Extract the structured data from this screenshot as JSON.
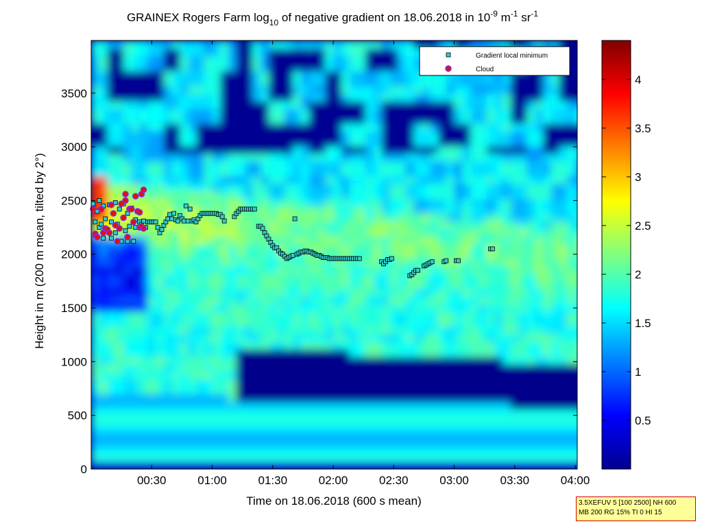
{
  "title_parts": {
    "a": "GRAINEX Rogers Farm log",
    "a_sub": "10",
    "b": " of negative gradient on 18.06.2018 in 10",
    "b_sup": "-9",
    "c": " m",
    "c_sup": "-1",
    "d": " sr",
    "d_sup": "-1"
  },
  "param_box": {
    "line1": "3.5XEFUV 5 [100 2500] NH 600",
    "line2": "MB 200 RG 15% TI 0 HI 15"
  },
  "colors": {
    "field_dark": "#00008f",
    "point_fill": "#33cccc",
    "cloud_fill": "#dd1111",
    "cloud_ring": "#8a2be2"
  },
  "chart_data": {
    "type": "heatmap",
    "title": "GRAINEX Rogers Farm log10 of negative gradient on 18.06.2018 in 10-9 m-1 sr-1",
    "xlabel": "Time on 18.06.2018 (600 s mean)",
    "ylabel": "Height in m (200 m mean, tilted by 2°)",
    "xlim_minutes": [
      0,
      241
    ],
    "ylim": [
      0,
      3990
    ],
    "x_ticks": [
      {
        "minutes": 30,
        "label": "00:30"
      },
      {
        "minutes": 60,
        "label": "01:00"
      },
      {
        "minutes": 90,
        "label": "01:30"
      },
      {
        "minutes": 120,
        "label": "02:00"
      },
      {
        "minutes": 150,
        "label": "02:30"
      },
      {
        "minutes": 180,
        "label": "03:00"
      },
      {
        "minutes": 210,
        "label": "03:30"
      },
      {
        "minutes": 240,
        "label": "04:00"
      }
    ],
    "y_ticks": [
      0,
      500,
      1000,
      1500,
      2000,
      2500,
      3000,
      3500
    ],
    "colorbar": {
      "colormap": "jet",
      "range": [
        0,
        4.4
      ],
      "ticks": [
        "0.5",
        "1",
        "1.5",
        "2",
        "2.5",
        "3",
        "3.5",
        "4"
      ]
    },
    "legend": {
      "position": "top-right",
      "entries": [
        {
          "label": "Gradient local minimum",
          "marker": "square",
          "color": "#33cccc"
        },
        {
          "label": "Cloud",
          "marker": "circle",
          "color": "#dd1111"
        }
      ]
    },
    "gradient_local_minimum": [
      [
        1,
        2470
      ],
      [
        2,
        2300
      ],
      [
        2,
        2180
      ],
      [
        3,
        2400
      ],
      [
        4,
        2250
      ],
      [
        4,
        2500
      ],
      [
        5,
        2280
      ],
      [
        6,
        2450
      ],
      [
        6,
        2150
      ],
      [
        7,
        2330
      ],
      [
        8,
        2230
      ],
      [
        9,
        2460
      ],
      [
        10,
        2300
      ],
      [
        10,
        2150
      ],
      [
        11,
        2380
      ],
      [
        12,
        2480
      ],
      [
        12,
        2200
      ],
      [
        13,
        2280
      ],
      [
        14,
        2420
      ],
      [
        15,
        2120
      ],
      [
        16,
        2340
      ],
      [
        16,
        2470
      ],
      [
        17,
        2220
      ],
      [
        18,
        2380
      ],
      [
        18,
        2120
      ],
      [
        19,
        2260
      ],
      [
        20,
        2430
      ],
      [
        21,
        2120
      ],
      [
        22,
        2320
      ],
      [
        22,
        2250
      ],
      [
        24,
        2300
      ],
      [
        25,
        2280
      ],
      [
        26,
        2310
      ],
      [
        27,
        2250
      ],
      [
        28,
        2300
      ],
      [
        29,
        2300
      ],
      [
        30,
        2300
      ],
      [
        31,
        2300
      ],
      [
        32,
        2300
      ],
      [
        33,
        2250
      ],
      [
        34,
        2200
      ],
      [
        35,
        2230
      ],
      [
        36,
        2270
      ],
      [
        37,
        2300
      ],
      [
        38,
        2330
      ],
      [
        39,
        2370
      ],
      [
        40,
        2330
      ],
      [
        41,
        2380
      ],
      [
        42,
        2320
      ],
      [
        43,
        2310
      ],
      [
        44,
        2360
      ],
      [
        45,
        2330
      ],
      [
        46,
        2310
      ],
      [
        47,
        2450
      ],
      [
        48,
        2310
      ],
      [
        49,
        2420
      ],
      [
        50,
        2310
      ],
      [
        51,
        2320
      ],
      [
        52,
        2300
      ],
      [
        53,
        2330
      ],
      [
        54,
        2360
      ],
      [
        55,
        2380
      ],
      [
        56,
        2380
      ],
      [
        57,
        2380
      ],
      [
        58,
        2380
      ],
      [
        59,
        2380
      ],
      [
        60,
        2380
      ],
      [
        61,
        2380
      ],
      [
        62,
        2380
      ],
      [
        63,
        2370
      ],
      [
        64,
        2370
      ],
      [
        65,
        2350
      ],
      [
        66,
        2310
      ],
      [
        71,
        2350
      ],
      [
        72,
        2380
      ],
      [
        73,
        2400
      ],
      [
        74,
        2420
      ],
      [
        75,
        2420
      ],
      [
        76,
        2420
      ],
      [
        77,
        2420
      ],
      [
        78,
        2420
      ],
      [
        79,
        2420
      ],
      [
        80,
        2420
      ],
      [
        81,
        2420
      ],
      [
        83,
        2260
      ],
      [
        84,
        2260
      ],
      [
        85,
        2240
      ],
      [
        86,
        2200
      ],
      [
        87,
        2170
      ],
      [
        88,
        2140
      ],
      [
        89,
        2110
      ],
      [
        90,
        2080
      ],
      [
        91,
        2060
      ],
      [
        92,
        2060
      ],
      [
        93,
        2030
      ],
      [
        94,
        2010
      ],
      [
        95,
        2000
      ],
      [
        96,
        1980
      ],
      [
        97,
        1960
      ],
      [
        98,
        1970
      ],
      [
        99,
        1980
      ],
      [
        100,
        1990
      ],
      [
        101,
        2330
      ],
      [
        102,
        2000
      ],
      [
        103,
        2010
      ],
      [
        104,
        2020
      ],
      [
        105,
        2020
      ],
      [
        106,
        2030
      ],
      [
        107,
        2030
      ],
      [
        108,
        2020
      ],
      [
        109,
        2020
      ],
      [
        110,
        2010
      ],
      [
        111,
        2000
      ],
      [
        112,
        1990
      ],
      [
        113,
        1990
      ],
      [
        114,
        1980
      ],
      [
        115,
        1970
      ],
      [
        116,
        1970
      ],
      [
        117,
        1970
      ],
      [
        118,
        1960
      ],
      [
        119,
        1960
      ],
      [
        120,
        1960
      ],
      [
        121,
        1960
      ],
      [
        122,
        1960
      ],
      [
        123,
        1960
      ],
      [
        124,
        1960
      ],
      [
        125,
        1960
      ],
      [
        126,
        1960
      ],
      [
        127,
        1960
      ],
      [
        128,
        1960
      ],
      [
        129,
        1960
      ],
      [
        130,
        1960
      ],
      [
        131,
        1960
      ],
      [
        132,
        1960
      ],
      [
        133,
        1960
      ],
      [
        144,
        1930
      ],
      [
        145,
        1910
      ],
      [
        146,
        1930
      ],
      [
        147,
        1950
      ],
      [
        148,
        1950
      ],
      [
        149,
        1960
      ],
      [
        158,
        1800
      ],
      [
        159,
        1810
      ],
      [
        160,
        1830
      ],
      [
        161,
        1850
      ],
      [
        162,
        1850
      ],
      [
        165,
        1890
      ],
      [
        166,
        1900
      ],
      [
        167,
        1910
      ],
      [
        168,
        1920
      ],
      [
        169,
        1930
      ],
      [
        175,
        1930
      ],
      [
        176,
        1940
      ],
      [
        181,
        1940
      ],
      [
        182,
        1940
      ],
      [
        198,
        2050
      ],
      [
        199,
        2050
      ]
    ],
    "cloud": [
      [
        1,
        2420
      ],
      [
        2,
        2190
      ],
      [
        3,
        2160
      ],
      [
        5,
        2420
      ],
      [
        6,
        2200
      ],
      [
        7,
        2240
      ],
      [
        8,
        2230
      ],
      [
        9,
        2200
      ],
      [
        10,
        2460
      ],
      [
        11,
        2380
      ],
      [
        12,
        2270
      ],
      [
        13,
        2120
      ],
      [
        14,
        2240
      ],
      [
        15,
        2470
      ],
      [
        16,
        2340
      ],
      [
        17,
        2500
      ],
      [
        17,
        2560
      ],
      [
        18,
        2160
      ],
      [
        19,
        2420
      ],
      [
        20,
        2420
      ],
      [
        21,
        2300
      ],
      [
        22,
        2540
      ],
      [
        23,
        2400
      ],
      [
        24,
        2390
      ],
      [
        25,
        2560
      ],
      [
        26,
        2600
      ],
      [
        24,
        2250
      ],
      [
        25,
        2260
      ],
      [
        26,
        2240
      ]
    ]
  }
}
